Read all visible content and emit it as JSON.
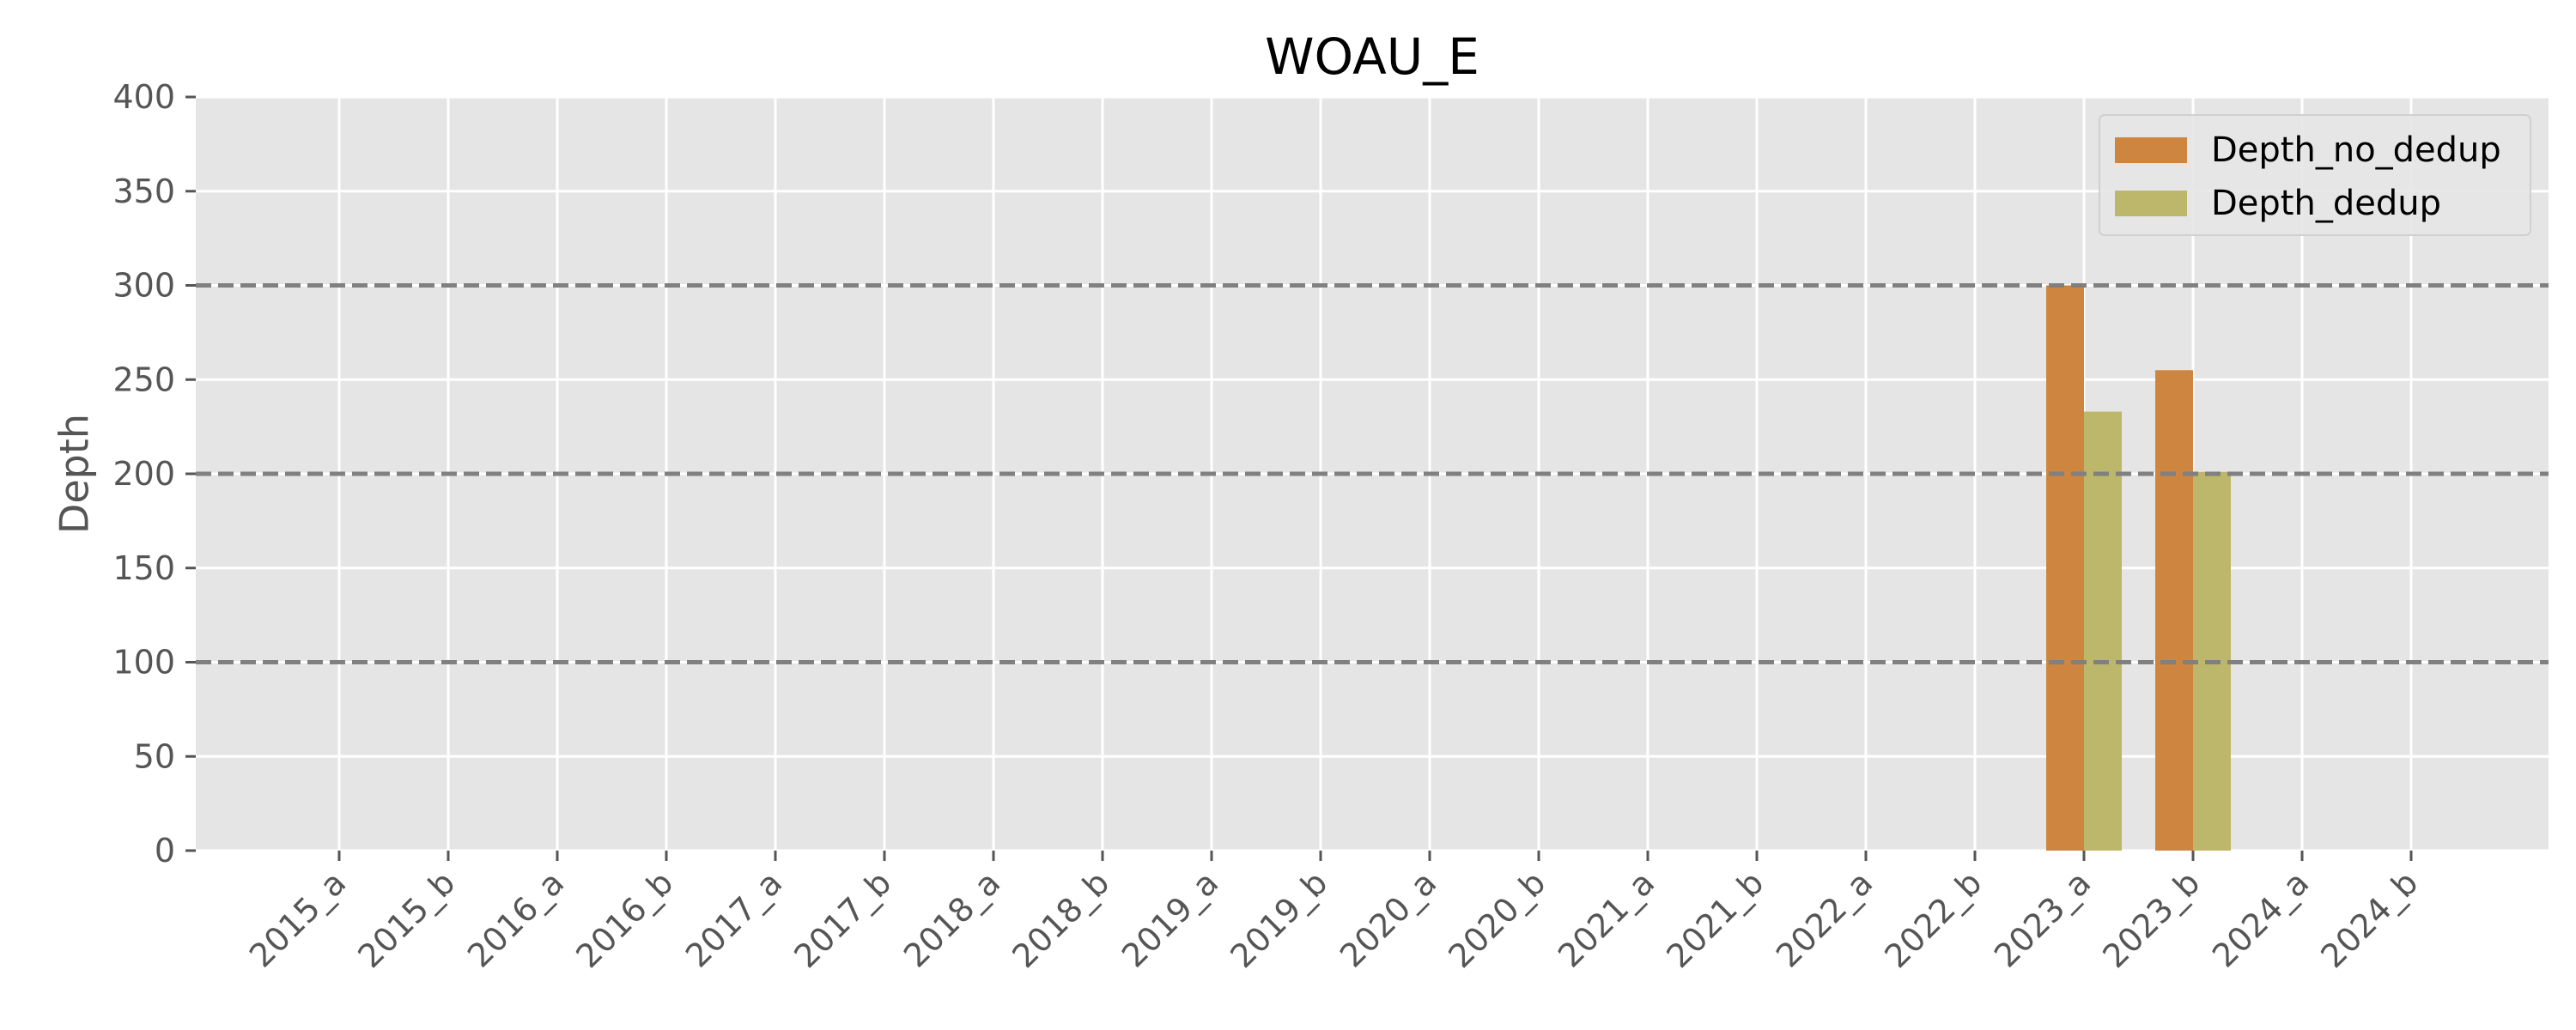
{
  "chart_data": {
    "type": "bar",
    "title": "WOAU_E",
    "xlabel": "",
    "ylabel": "Depth",
    "ylim": [
      0,
      400
    ],
    "yticks": [
      0,
      50,
      100,
      150,
      200,
      250,
      300,
      350,
      400
    ],
    "categories": [
      "2015_a",
      "2015_b",
      "2016_a",
      "2016_b",
      "2017_a",
      "2017_b",
      "2018_a",
      "2018_b",
      "2019_a",
      "2019_b",
      "2020_a",
      "2020_b",
      "2021_a",
      "2021_b",
      "2022_a",
      "2022_b",
      "2023_a",
      "2023_b",
      "2024_a",
      "2024_b"
    ],
    "series": [
      {
        "name": "Depth_no_dedup",
        "color": "#cd853f",
        "values": [
          0,
          0,
          0,
          0,
          0,
          0,
          0,
          0,
          0,
          0,
          0,
          0,
          0,
          0,
          0,
          0,
          300,
          255,
          0,
          0
        ]
      },
      {
        "name": "Depth_dedup",
        "color": "#bdb76b",
        "values": [
          0,
          0,
          0,
          0,
          0,
          0,
          0,
          0,
          0,
          0,
          0,
          0,
          0,
          0,
          0,
          0,
          233,
          201,
          0,
          0
        ]
      }
    ],
    "reference_lines": [
      100,
      200,
      300
    ],
    "grid": true,
    "legend_position": "top-right"
  }
}
